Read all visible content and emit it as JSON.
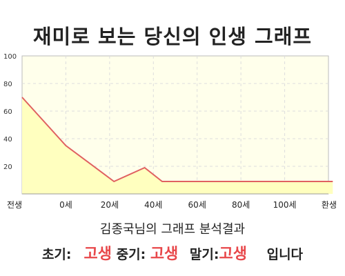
{
  "header": {
    "title": "재미로 보는 당신의 인생 그래프"
  },
  "chart_data": {
    "type": "area",
    "x_tick_labels": [
      "전생",
      "0세",
      "20세",
      "40세",
      "60세",
      "80세",
      "100세",
      "환생"
    ],
    "y_ticks": [
      20,
      40,
      60,
      80,
      100
    ],
    "ylim": [
      0,
      100
    ],
    "grid": true,
    "series": [
      {
        "x": [
          0,
          1,
          2.1,
          2.8,
          3.2,
          7.1
        ],
        "values": [
          70,
          35,
          9,
          19,
          9,
          9
        ]
      }
    ],
    "colors": {
      "line": "#e06060",
      "fill": "#ffffbf",
      "plot_background": "#ffffeb",
      "grid": "#dddddd"
    }
  },
  "footer": {
    "subtitle": "김종국님의 그래프 분석결과",
    "early_label": "초기:",
    "early_value": "고생",
    "middle_label": "중기:",
    "middle_value": "고생",
    "late_label": "말기:",
    "late_value": "고생",
    "suffix": "입니다"
  }
}
